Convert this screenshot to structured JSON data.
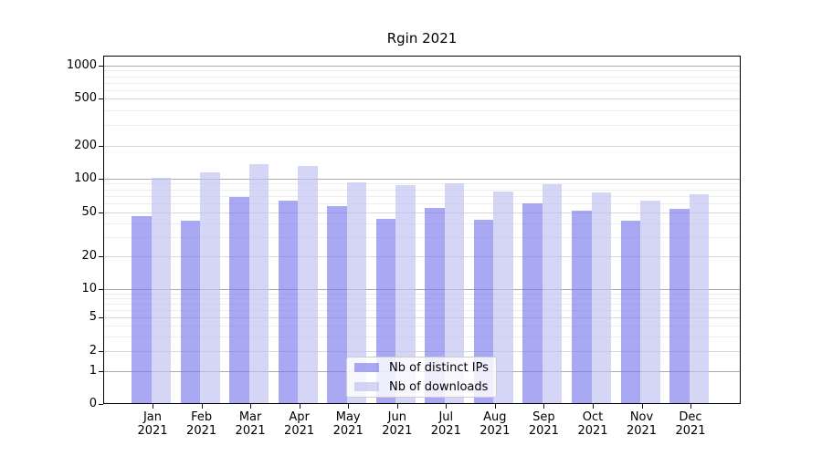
{
  "chart_data": {
    "type": "bar",
    "title": "Rgin 2021",
    "year": "2021",
    "categories": [
      "Jan",
      "Feb",
      "Mar",
      "Apr",
      "May",
      "Jun",
      "Jul",
      "Aug",
      "Sep",
      "Oct",
      "Nov",
      "Dec"
    ],
    "series": [
      {
        "name": "Nb of distinct IPs",
        "color": "#7474eb",
        "opacity": 0.62,
        "values": [
          47,
          42,
          69,
          64,
          57,
          44,
          55,
          43,
          60,
          52,
          42,
          54
        ]
      },
      {
        "name": "Nb of downloads",
        "color": "#bebef0",
        "opacity": 0.65,
        "values": [
          101,
          114,
          136,
          131,
          92,
          87,
          91,
          77,
          89,
          76,
          64,
          73
        ]
      }
    ],
    "yscale": "symlog",
    "ylim": [
      0,
      1250
    ],
    "y_ticks": [
      0,
      1,
      2,
      5,
      10,
      20,
      50,
      100,
      200,
      500,
      1000
    ],
    "y_minor_gridlines": [
      3,
      4,
      6,
      7,
      8,
      9,
      30,
      40,
      60,
      70,
      80,
      90,
      300,
      400,
      600,
      700,
      800,
      900
    ],
    "grid": true,
    "legend_position": "lower center inside",
    "colors": {
      "grid_decade": "#ababab",
      "grid_mid": "#d9d9d9",
      "grid_minor": "#ededed",
      "spine": "#000000",
      "tick": "#111111",
      "text": "#000000"
    }
  }
}
